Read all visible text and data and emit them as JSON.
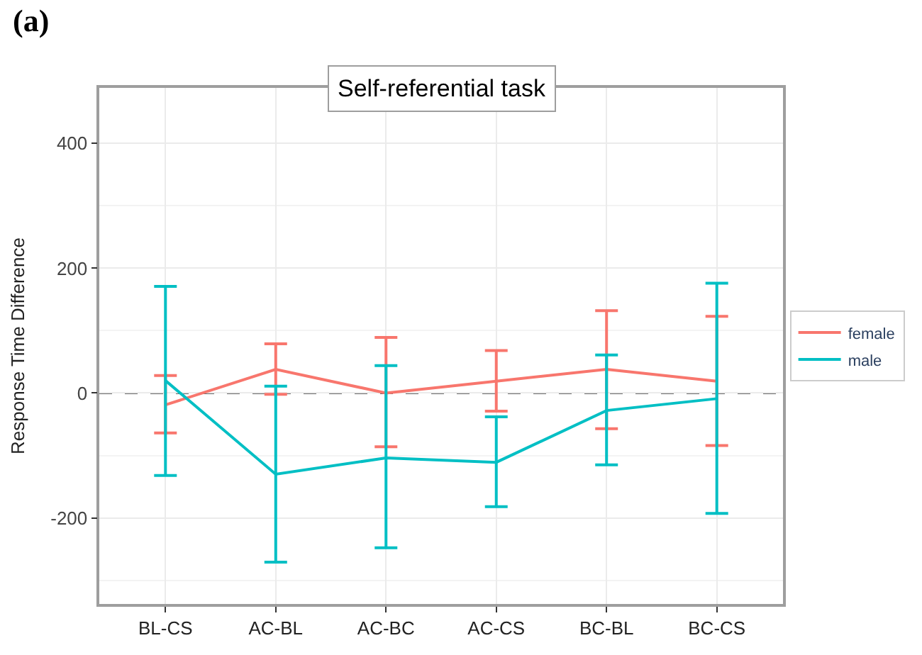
{
  "chart_data": {
    "type": "line",
    "title": "Self-referential task",
    "ylabel": "Response Time Difference",
    "annotations": [
      "(a)"
    ],
    "categories": [
      "BL-CS",
      "AC-BL",
      "AC-BC",
      "AC-CS",
      "BC-BL",
      "BC-CS"
    ],
    "series": [
      {
        "name": "female",
        "color": "#f8766d",
        "values": [
          -19,
          38,
          0,
          19,
          38,
          19
        ],
        "errors": [
          [
            -64,
            28
          ],
          [
            -2,
            79
          ],
          [
            -86,
            89
          ],
          [
            -29,
            68
          ],
          [
            -57,
            132
          ],
          [
            -84,
            123
          ]
        ]
      },
      {
        "name": "male",
        "color": "#00bfc4",
        "values": [
          20,
          -130,
          -104,
          -111,
          -28,
          -9
        ],
        "errors": [
          [
            -132,
            171
          ],
          [
            -271,
            11
          ],
          [
            -248,
            44
          ],
          [
            -182,
            -38
          ],
          [
            -115,
            61
          ],
          [
            -193,
            176
          ]
        ]
      }
    ],
    "ylim": [
      -338,
      489
    ],
    "yticks": [
      -200,
      0,
      200,
      400
    ],
    "ref_lines": [
      {
        "axis": "y",
        "value": 0,
        "color": "#333333",
        "line_style": "dashed"
      }
    ],
    "grid": true,
    "legend": "right",
    "marker": "none",
    "line_style": "solid"
  }
}
